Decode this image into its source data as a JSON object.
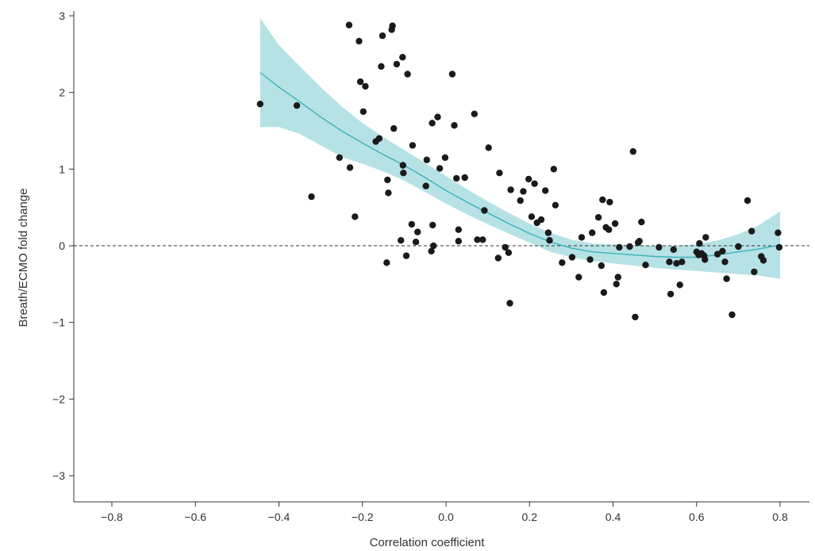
{
  "chart_data": {
    "type": "scatter",
    "xlabel": "Correlation coefficient",
    "ylabel": "Breath/ECMO fold change",
    "xlim": [
      -0.88,
      0.8
    ],
    "ylim": [
      -3.35,
      3.05
    ],
    "x_ticks": [
      -0.8,
      -0.6,
      -0.4,
      -0.2,
      0.0,
      0.2,
      0.4,
      0.6,
      0.8
    ],
    "x_tick_labels": [
      "−0.8",
      "−0.6",
      "−0.4",
      "−0.2",
      "0.0",
      "0.2",
      "0.4",
      "0.6",
      "0.8"
    ],
    "y_ticks": [
      -3,
      -2,
      -1,
      0,
      1,
      2,
      3
    ],
    "y_tick_labels": [
      "−3",
      "−2",
      "−1",
      "0",
      "1",
      "2",
      "3"
    ],
    "reference_line_y": 0,
    "grid": false,
    "colors": {
      "points": "#1a1a1a",
      "fit_line": "#3ab3b8",
      "ci_band": "#a9dde0"
    },
    "points": [
      [
        -0.445,
        1.85
      ],
      [
        -0.357,
        1.83
      ],
      [
        -0.322,
        0.64
      ],
      [
        -0.255,
        1.15
      ],
      [
        -0.232,
        2.88
      ],
      [
        -0.23,
        1.02
      ],
      [
        -0.218,
        0.38
      ],
      [
        -0.208,
        2.67
      ],
      [
        -0.205,
        2.14
      ],
      [
        -0.198,
        1.75
      ],
      [
        -0.193,
        2.08
      ],
      [
        -0.168,
        1.36
      ],
      [
        -0.16,
        1.4
      ],
      [
        -0.155,
        2.34
      ],
      [
        -0.152,
        2.74
      ],
      [
        -0.142,
        -0.22
      ],
      [
        -0.14,
        0.86
      ],
      [
        -0.138,
        0.69
      ],
      [
        -0.13,
        2.82
      ],
      [
        -0.128,
        2.87
      ],
      [
        -0.125,
        1.53
      ],
      [
        -0.118,
        2.37
      ],
      [
        -0.108,
        0.07
      ],
      [
        -0.104,
        2.46
      ],
      [
        -0.103,
        1.05
      ],
      [
        -0.102,
        0.95
      ],
      [
        -0.095,
        -0.13
      ],
      [
        -0.092,
        2.24
      ],
      [
        -0.082,
        0.28
      ],
      [
        -0.08,
        1.31
      ],
      [
        -0.072,
        0.05
      ],
      [
        -0.068,
        0.18
      ],
      [
        -0.048,
        0.78
      ],
      [
        -0.046,
        1.12
      ],
      [
        -0.035,
        -0.07
      ],
      [
        -0.033,
        1.6
      ],
      [
        -0.032,
        0.27
      ],
      [
        -0.03,
        0.0
      ],
      [
        -0.02,
        1.68
      ],
      [
        -0.015,
        1.01
      ],
      [
        -0.002,
        1.15
      ],
      [
        0.015,
        2.24
      ],
      [
        0.02,
        1.57
      ],
      [
        0.025,
        0.88
      ],
      [
        0.03,
        0.21
      ],
      [
        0.03,
        0.06
      ],
      [
        0.045,
        0.89
      ],
      [
        0.068,
        1.72
      ],
      [
        0.075,
        0.08
      ],
      [
        0.088,
        0.08
      ],
      [
        0.092,
        0.46
      ],
      [
        0.102,
        1.28
      ],
      [
        0.125,
        -0.16
      ],
      [
        0.128,
        0.95
      ],
      [
        0.142,
        -0.02
      ],
      [
        0.15,
        -0.09
      ],
      [
        0.155,
        0.73
      ],
      [
        0.153,
        -0.75
      ],
      [
        0.178,
        0.59
      ],
      [
        0.185,
        0.71
      ],
      [
        0.198,
        0.87
      ],
      [
        0.205,
        0.38
      ],
      [
        0.212,
        0.81
      ],
      [
        0.218,
        0.3
      ],
      [
        0.228,
        0.34
      ],
      [
        0.238,
        0.72
      ],
      [
        0.245,
        0.17
      ],
      [
        0.248,
        0.07
      ],
      [
        0.258,
        1.0
      ],
      [
        0.262,
        0.53
      ],
      [
        0.278,
        -0.22
      ],
      [
        0.302,
        -0.15
      ],
      [
        0.318,
        -0.41
      ],
      [
        0.325,
        0.11
      ],
      [
        0.345,
        -0.18
      ],
      [
        0.35,
        0.17
      ],
      [
        0.365,
        0.37
      ],
      [
        0.372,
        -0.26
      ],
      [
        0.375,
        0.6
      ],
      [
        0.378,
        -0.61
      ],
      [
        0.383,
        0.24
      ],
      [
        0.39,
        0.21
      ],
      [
        0.392,
        0.57
      ],
      [
        0.405,
        0.29
      ],
      [
        0.408,
        -0.5
      ],
      [
        0.412,
        -0.41
      ],
      [
        0.415,
        -0.02
      ],
      [
        0.44,
        -0.01
      ],
      [
        0.448,
        1.23
      ],
      [
        0.453,
        -0.93
      ],
      [
        0.46,
        0.04
      ],
      [
        0.463,
        0.06
      ],
      [
        0.468,
        0.31
      ],
      [
        0.478,
        -0.25
      ],
      [
        0.51,
        -0.02
      ],
      [
        0.535,
        -0.21
      ],
      [
        0.538,
        -0.63
      ],
      [
        0.545,
        -0.05
      ],
      [
        0.552,
        -0.23
      ],
      [
        0.56,
        -0.51
      ],
      [
        0.565,
        -0.21
      ],
      [
        0.6,
        -0.08
      ],
      [
        0.605,
        -0.12
      ],
      [
        0.607,
        0.03
      ],
      [
        0.612,
        -0.1
      ],
      [
        0.618,
        -0.13
      ],
      [
        0.62,
        -0.18
      ],
      [
        0.622,
        0.11
      ],
      [
        0.65,
        -0.11
      ],
      [
        0.662,
        -0.07
      ],
      [
        0.668,
        -0.21
      ],
      [
        0.672,
        -0.43
      ],
      [
        0.685,
        -0.9
      ],
      [
        0.7,
        -0.01
      ],
      [
        0.722,
        0.59
      ],
      [
        0.732,
        0.19
      ],
      [
        0.738,
        -0.34
      ],
      [
        0.755,
        -0.14
      ],
      [
        0.76,
        -0.19
      ],
      [
        0.795,
        0.17
      ],
      [
        0.798,
        -0.02
      ]
    ],
    "fit_line": {
      "x": [
        -0.445,
        -0.4,
        -0.35,
        -0.3,
        -0.25,
        -0.2,
        -0.15,
        -0.1,
        -0.05,
        0.0,
        0.05,
        0.1,
        0.15,
        0.2,
        0.25,
        0.3,
        0.35,
        0.4,
        0.45,
        0.5,
        0.55,
        0.6,
        0.65,
        0.7,
        0.75,
        0.8
      ],
      "y": [
        2.26,
        2.07,
        1.88,
        1.68,
        1.5,
        1.34,
        1.19,
        1.05,
        0.89,
        0.72,
        0.57,
        0.43,
        0.29,
        0.16,
        0.05,
        -0.03,
        -0.08,
        -0.1,
        -0.12,
        -0.14,
        -0.15,
        -0.15,
        -0.12,
        -0.08,
        -0.04,
        0.01
      ]
    },
    "ci_band": {
      "x": [
        -0.445,
        -0.4,
        -0.35,
        -0.3,
        -0.25,
        -0.2,
        -0.15,
        -0.1,
        -0.05,
        0.0,
        0.05,
        0.1,
        0.15,
        0.2,
        0.25,
        0.3,
        0.35,
        0.4,
        0.45,
        0.5,
        0.55,
        0.6,
        0.65,
        0.7,
        0.75,
        0.8
      ],
      "upper": [
        2.97,
        2.62,
        2.34,
        2.07,
        1.82,
        1.6,
        1.42,
        1.25,
        1.08,
        0.91,
        0.74,
        0.58,
        0.43,
        0.29,
        0.17,
        0.08,
        0.03,
        0.02,
        0.01,
        0.0,
        0.0,
        0.02,
        0.07,
        0.15,
        0.27,
        0.45
      ],
      "lower": [
        1.55,
        1.55,
        1.46,
        1.31,
        1.16,
        1.07,
        0.97,
        0.85,
        0.7,
        0.55,
        0.41,
        0.28,
        0.16,
        0.04,
        -0.08,
        -0.15,
        -0.2,
        -0.23,
        -0.26,
        -0.29,
        -0.31,
        -0.33,
        -0.35,
        -0.37,
        -0.39,
        -0.43
      ]
    }
  }
}
